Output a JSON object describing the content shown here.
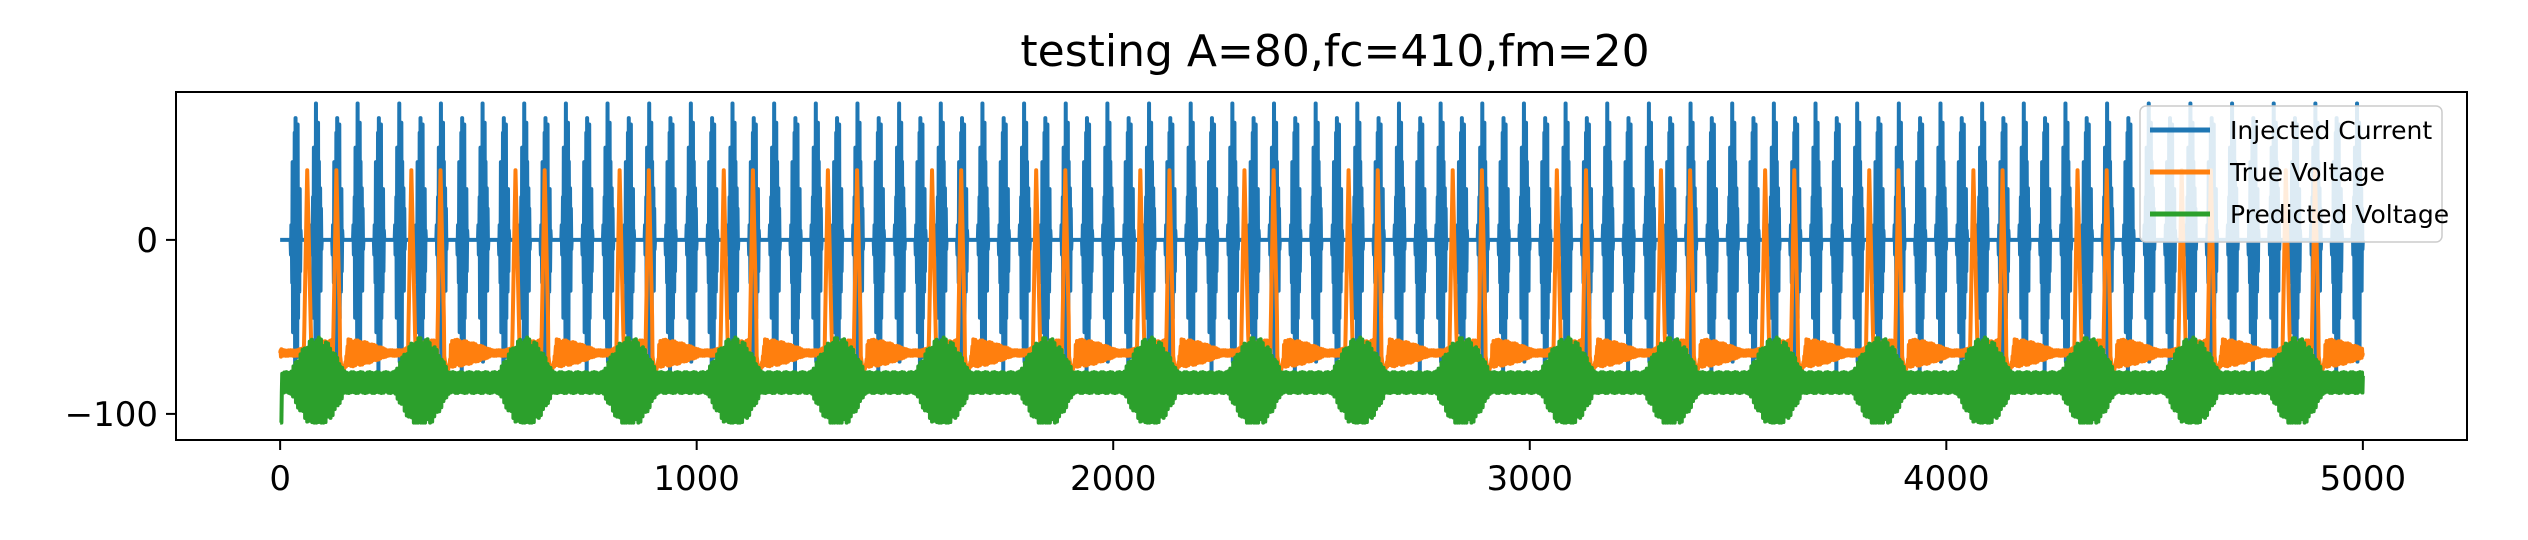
{
  "chart_data": {
    "type": "line",
    "title": "testing A=80,fc=410,fm=20",
    "xlabel": "",
    "ylabel": "",
    "xlim": [
      -250,
      5250
    ],
    "ylim": [
      -115,
      85
    ],
    "x_ticks": [
      0,
      1000,
      2000,
      3000,
      4000,
      5000
    ],
    "x_tick_labels": [
      "0",
      "1000",
      "2000",
      "3000",
      "4000",
      "5000"
    ],
    "y_ticks": [
      0,
      -100
    ],
    "y_tick_labels": [
      "0",
      "−100"
    ],
    "grid": false,
    "legend_position": "top-right",
    "x_range": [
      0,
      5000
    ],
    "series": [
      {
        "name": "Injected Current",
        "color": "#1f77b4",
        "model": "amplitude-modulated sine",
        "amplitude": 80,
        "carrier_cycles_per_1000_samples": 410,
        "modulation_cycles_per_1000_samples": 20,
        "offset": 0
      },
      {
        "name": "True Voltage",
        "color": "#ff7f0e",
        "model": "spiking response",
        "resting_level": -65,
        "peak_level": 40,
        "spikes_per_burst": 2,
        "bursts_per_1000_samples": 4
      },
      {
        "name": "Predicted Voltage",
        "color": "#2ca02c",
        "model": "oscillating response",
        "baseline": -82,
        "min_level": -105,
        "max_level": -55,
        "start_value": -105
      }
    ]
  }
}
